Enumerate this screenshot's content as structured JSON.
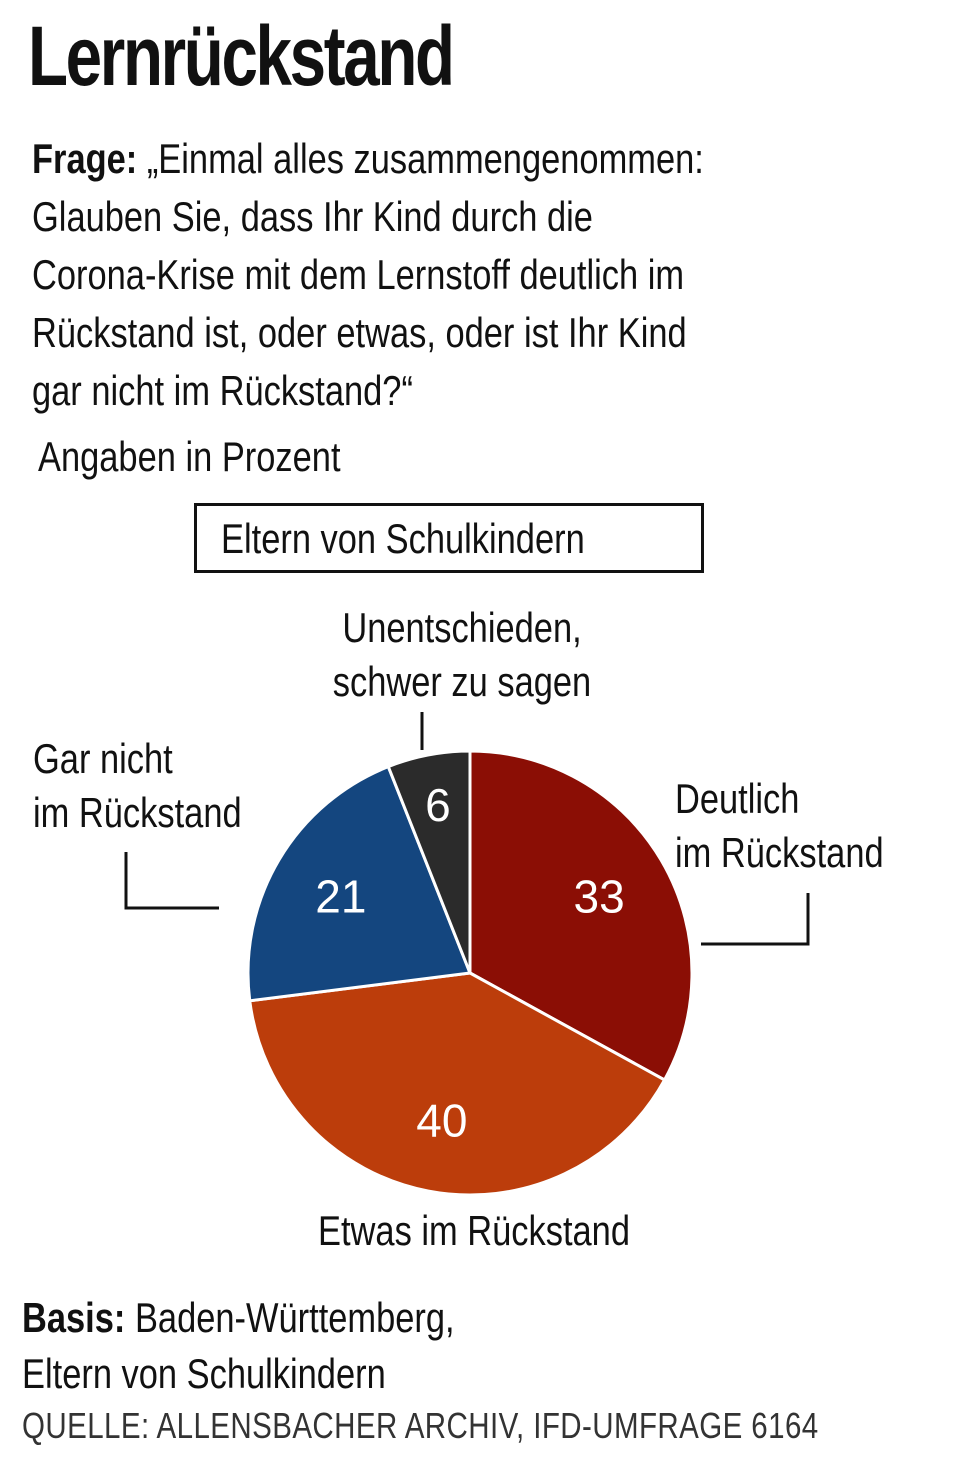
{
  "title": "Lernrückstand",
  "question": {
    "label": "Frage:",
    "line1": "„Einmal alles zusammengenommen:",
    "line2": "Glauben Sie, dass Ihr Kind durch die",
    "line3": "Corona-Krise mit dem Lernstoff deutlich im",
    "line4": "Rückstand ist, oder etwas, oder ist Ihr Kind",
    "line5": "gar nicht im Rückstand?“"
  },
  "unit_note": "Angaben in Prozent",
  "group_box": "Eltern von Schulkindern",
  "chart_data": {
    "type": "pie",
    "start_angle_deg": 0,
    "direction": "clockwise",
    "slices": [
      {
        "label_line1": "Deutlich",
        "label_line2": "im Rückstand",
        "value": 33,
        "value_label": "33",
        "color": "#8b0e05"
      },
      {
        "label_line1": "Etwas im Rückstand",
        "label_line2": "",
        "value": 40,
        "value_label": "40",
        "color": "#bc3d0b"
      },
      {
        "label_line1": "Gar nicht",
        "label_line2": "im Rückstand",
        "value": 21,
        "value_label": "21",
        "color": "#14467f"
      },
      {
        "label_line1": "Unentschieden,",
        "label_line2": "schwer zu sagen",
        "value": 6,
        "value_label": "6",
        "color": "#2b2b2b"
      }
    ]
  },
  "basis": {
    "label": "Basis:",
    "line1": "Baden-Württemberg,",
    "line2": "Eltern von Schulkindern"
  },
  "source": "QUELLE: ALLENSBACHER ARCHIV, IFD-UMFRAGE 6164"
}
